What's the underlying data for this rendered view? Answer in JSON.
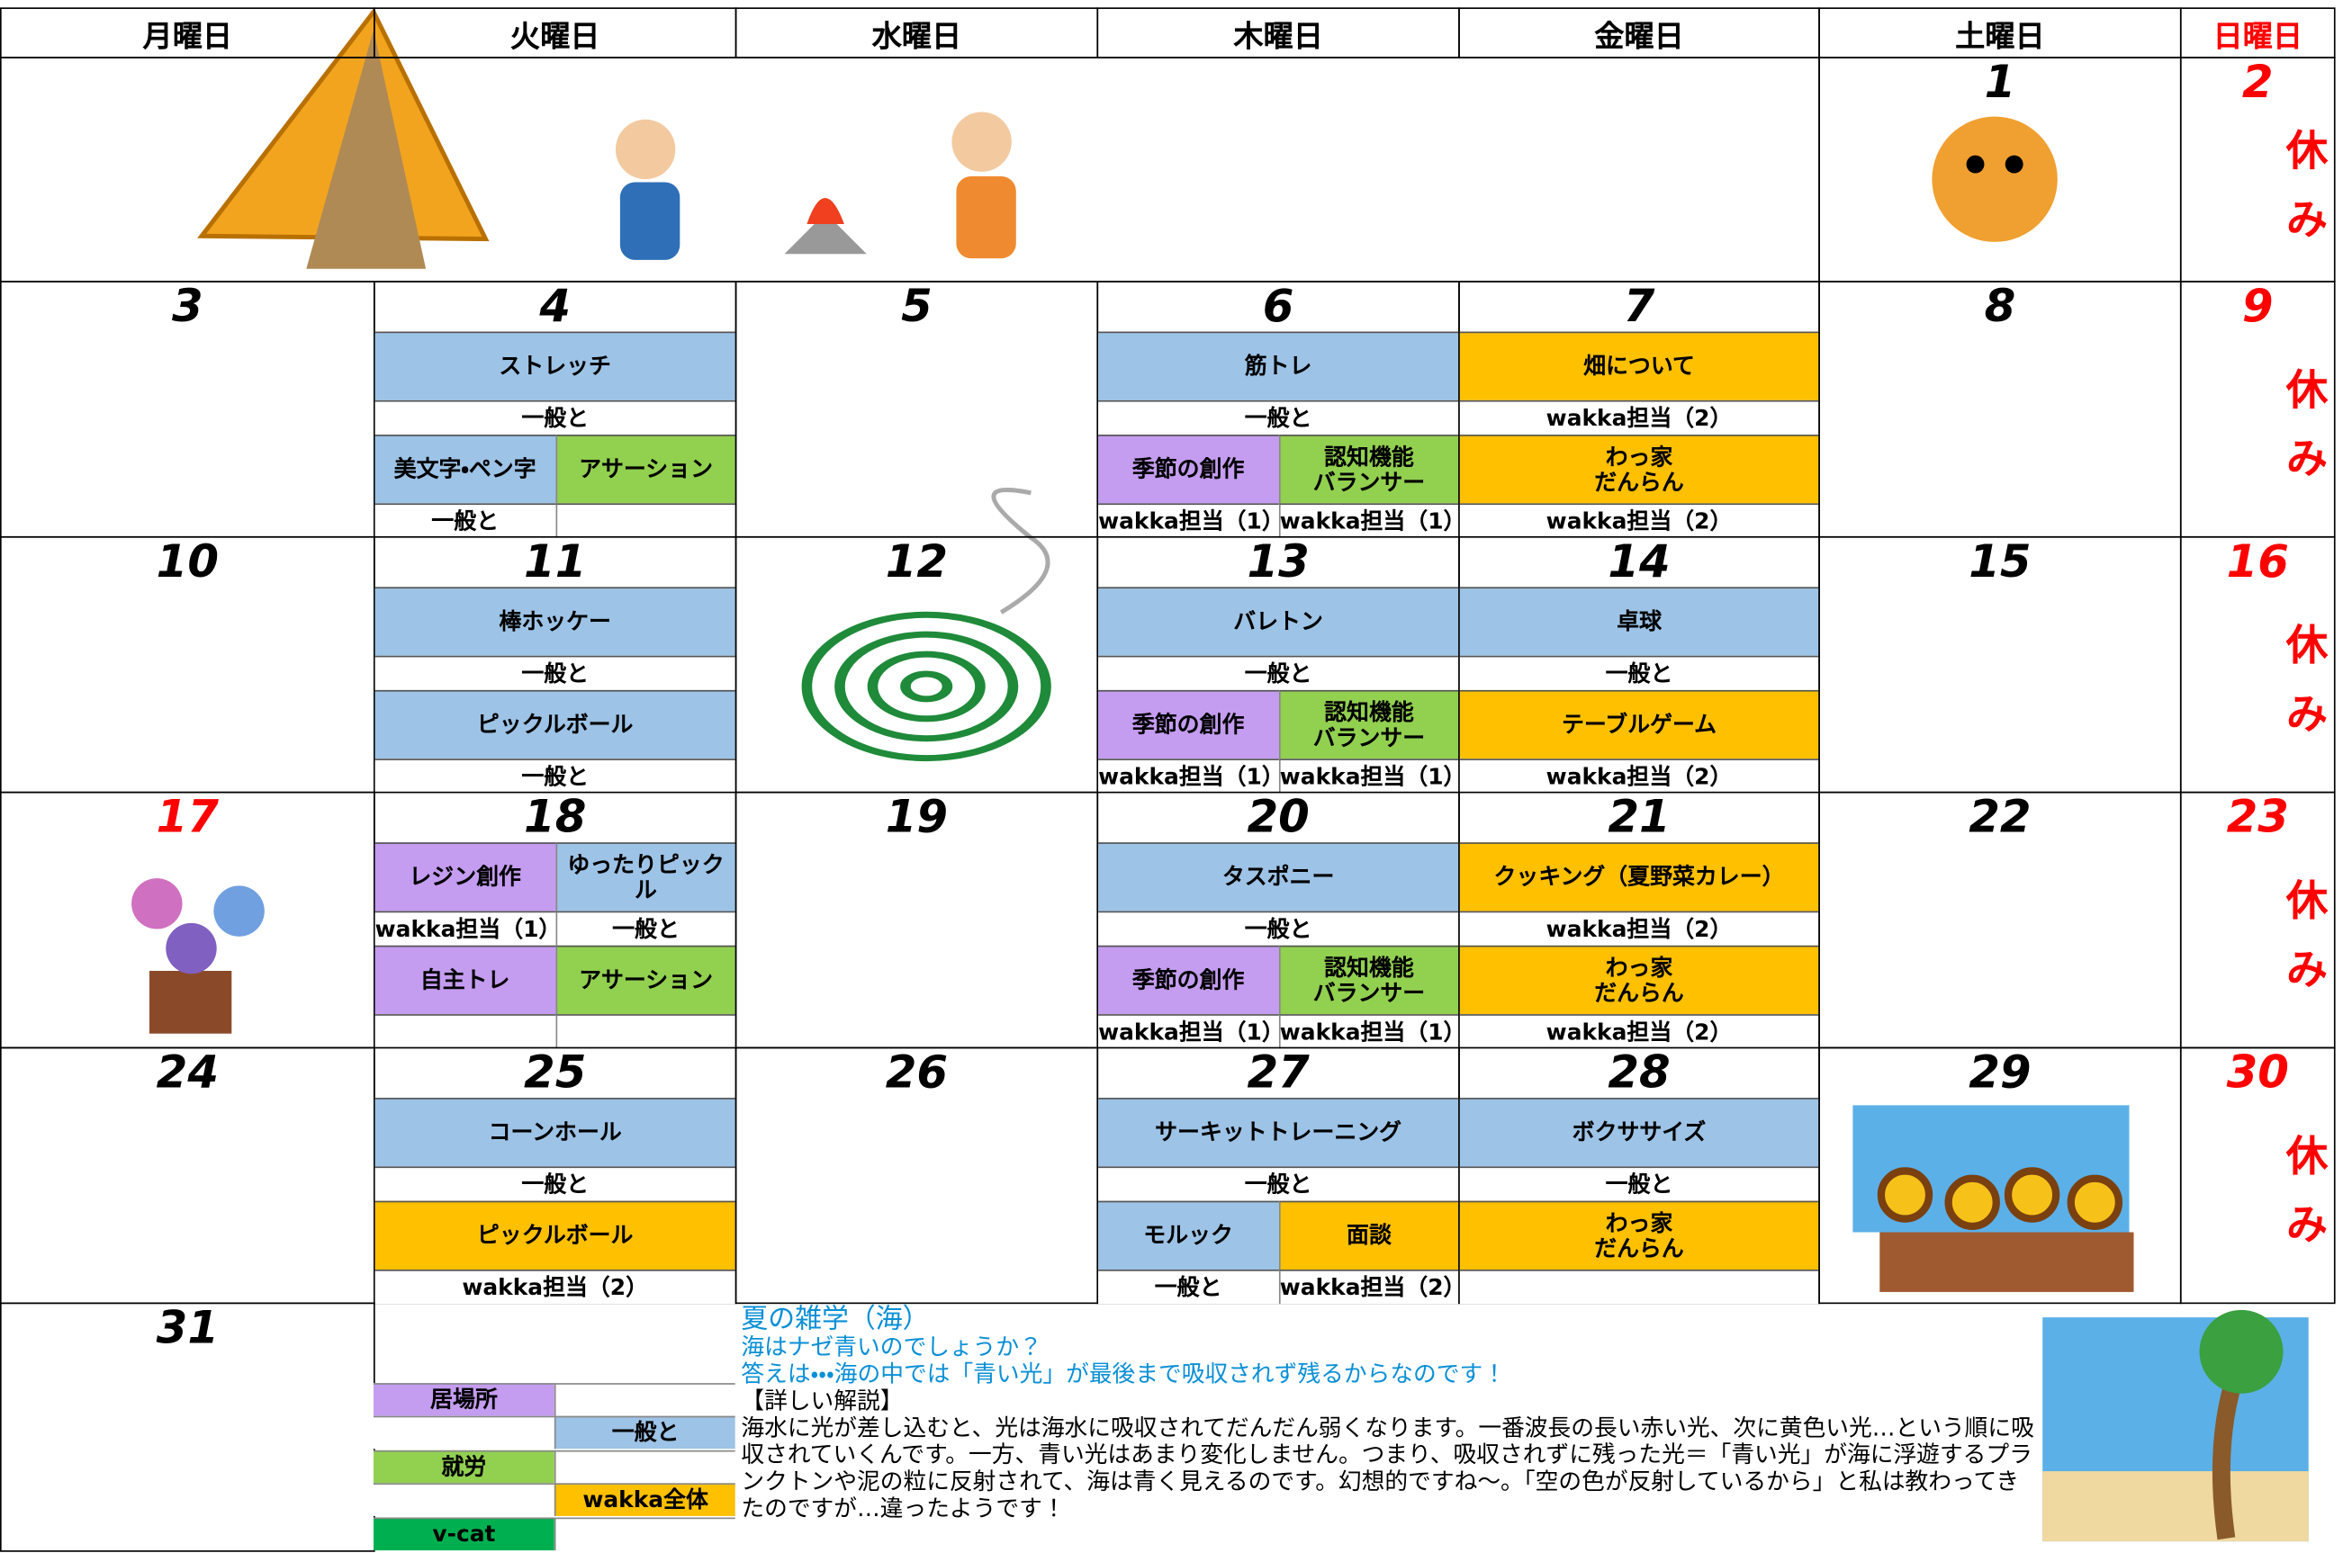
{
  "header": {
    "days": [
      "月曜日",
      "火曜日",
      "水曜日",
      "木曜日",
      "金曜日",
      "土曜日",
      "日曜日"
    ],
    "day_colors": [
      "#000000",
      "#000000",
      "#000000",
      "#000000",
      "#000000",
      "#000000",
      "#ff0000"
    ]
  },
  "weeks": [
    {
      "cells": [
        {
          "date": "1"
        },
        {
          "date": "2",
          "color": "#ff0000",
          "note": "休み"
        }
      ]
    },
    {
      "cells": [
        {
          "date": "3"
        },
        {
          "date": "4",
          "rows": [
            [
              {
                "text": "ストレッチ",
                "color": "#9dc3e6"
              }
            ],
            [
              {
                "text": "一般と"
              }
            ],
            [
              {
                "text": "美文字・ペン字",
                "color": "#9dc3e6"
              },
              {
                "text": "アサーション",
                "color": "#92d050"
              }
            ],
            [
              {
                "text": "一般と"
              },
              {}
            ]
          ]
        },
        {
          "date": "5"
        },
        {
          "date": "6",
          "rows": [
            [
              {
                "text": "筋トレ",
                "color": "#9dc3e6"
              }
            ],
            [
              {
                "text": "一般と"
              }
            ],
            [
              {
                "text": "季節の創作",
                "color": "#c49cf0"
              },
              {
                "text": "認知機能\nバランサー",
                "color": "#92d050"
              }
            ],
            [
              {
                "text": "wakka担当（1）"
              },
              {
                "text": "wakka担当（1）"
              }
            ]
          ]
        },
        {
          "date": "7",
          "rows": [
            [
              {
                "text": "畑について",
                "color": "#ffc000"
              }
            ],
            [
              {
                "text": "wakka担当（2）"
              }
            ],
            [
              {
                "text": "わっ家\nだんらん",
                "color": "#ffc000"
              }
            ],
            [
              {
                "text": "wakka担当（2）"
              }
            ]
          ]
        },
        {
          "date": "8"
        },
        {
          "date": "9",
          "color": "#ff0000",
          "note": "休み"
        }
      ]
    },
    {
      "cells": [
        {
          "date": "10"
        },
        {
          "date": "11",
          "rows": [
            [
              {
                "text": "棒ホッケー",
                "color": "#9dc3e6"
              }
            ],
            [
              {
                "text": "一般と"
              }
            ],
            [
              {
                "text": "ピックルボール",
                "color": "#9dc3e6"
              }
            ],
            [
              {
                "text": "一般と"
              }
            ]
          ]
        },
        {
          "date": "12"
        },
        {
          "date": "13",
          "rows": [
            [
              {
                "text": "バレトン",
                "color": "#9dc3e6"
              }
            ],
            [
              {
                "text": "一般と"
              }
            ],
            [
              {
                "text": "季節の創作",
                "color": "#c49cf0"
              },
              {
                "text": "認知機能\nバランサー",
                "color": "#92d050"
              }
            ],
            [
              {
                "text": "wakka担当（1）"
              },
              {
                "text": "wakka担当（1）"
              }
            ]
          ]
        },
        {
          "date": "14",
          "rows": [
            [
              {
                "text": "卓球",
                "color": "#9dc3e6"
              }
            ],
            [
              {
                "text": "一般と"
              }
            ],
            [
              {
                "text": "テーブルゲーム",
                "color": "#ffc000"
              }
            ],
            [
              {
                "text": "wakka担当（2）"
              }
            ]
          ]
        },
        {
          "date": "15"
        },
        {
          "date": "16",
          "color": "#ff0000",
          "note": "休み"
        }
      ]
    },
    {
      "cells": [
        {
          "date": "17",
          "color": "#ff0000"
        },
        {
          "date": "18",
          "rows": [
            [
              {
                "text": "レジン創作",
                "color": "#c49cf0"
              },
              {
                "text": "ゆったりピックル",
                "color": "#9dc3e6"
              }
            ],
            [
              {
                "text": "wakka担当（1）"
              },
              {
                "text": "一般と"
              }
            ],
            [
              {
                "text": "自主トレ",
                "color": "#c49cf0"
              },
              {
                "text": "アサーション",
                "color": "#92d050"
              }
            ],
            [
              {},
              {}
            ]
          ]
        },
        {
          "date": "19"
        },
        {
          "date": "20",
          "rows": [
            [
              {
                "text": "タスポニー",
                "color": "#9dc3e6"
              }
            ],
            [
              {
                "text": "一般と"
              }
            ],
            [
              {
                "text": "季節の創作",
                "color": "#c49cf0"
              },
              {
                "text": "認知機能\nバランサー",
                "color": "#92d050"
              }
            ],
            [
              {
                "text": "wakka担当（1）"
              },
              {
                "text": "wakka担当（1）"
              }
            ]
          ]
        },
        {
          "date": "21",
          "rows": [
            [
              {
                "text": "クッキング（夏野菜カレー）",
                "color": "#ffc000"
              }
            ],
            [
              {
                "text": "wakka担当（2）"
              }
            ],
            [
              {
                "text": "わっ家\nだんらん",
                "color": "#ffc000"
              }
            ],
            [
              {
                "text": "wakka担当（2）"
              }
            ]
          ]
        },
        {
          "date": "22"
        },
        {
          "date": "23",
          "color": "#ff0000",
          "note": "休み"
        }
      ]
    },
    {
      "cells": [
        {
          "date": "24"
        },
        {
          "date": "25",
          "rows": [
            [
              {
                "text": "コーンホール",
                "color": "#9dc3e6"
              }
            ],
            [
              {
                "text": "一般と"
              }
            ],
            [
              {
                "text": "ピックルボール",
                "color": "#ffc000"
              }
            ],
            [
              {
                "text": "wakka担当（2）"
              }
            ]
          ]
        },
        {
          "date": "26"
        },
        {
          "date": "27",
          "rows": [
            [
              {
                "text": "サーキットトレーニング",
                "color": "#9dc3e6"
              }
            ],
            [
              {
                "text": "一般と"
              }
            ],
            [
              {
                "text": "モルック",
                "color": "#9dc3e6"
              },
              {
                "text": "面談",
                "color": "#ffc000"
              }
            ],
            [
              {
                "text": "一般と"
              },
              {
                "text": "wakka担当（2）"
              }
            ]
          ]
        },
        {
          "date": "28",
          "rows": [
            [
              {
                "text": "ボクササイズ",
                "color": "#9dc3e6"
              }
            ],
            [
              {
                "text": "一般と"
              }
            ],
            [
              {
                "text": "わっ家\nだんらん",
                "color": "#ffc000"
              }
            ],
            [
              {}
            ]
          ]
        },
        {
          "date": "29"
        },
        {
          "date": "30",
          "color": "#ff0000",
          "note": "休み"
        }
      ]
    },
    {
      "cells": [
        {
          "date": "31"
        }
      ]
    }
  ],
  "legend": [
    [
      {
        "text": "居場所",
        "color": "#c49cf0"
      },
      {}
    ],
    [
      {},
      {
        "text": "一般と",
        "color": "#9dc3e6"
      }
    ],
    [
      {
        "text": "就労",
        "color": "#92d050"
      },
      {}
    ],
    [
      {},
      {
        "text": "wakka全体",
        "color": "#ffc000"
      }
    ],
    [
      {
        "text": "v-cat",
        "color": "#00b050"
      },
      {}
    ]
  ],
  "trivia": {
    "title": "夏の雑学（海）",
    "question": "海はナゼ青いのでしょうか？",
    "answer": "答えは・・・海の中では「青い光」が最後まで吸収されず残るからなのです！",
    "heading": "【詳しい解説】",
    "body": "海水に光が差し込むと、光は海水に吸収されてだんだん弱くなります。一番波長の長い赤い光、次に黄色い光…という順に吸収されていくんです。一方、青い光はあまり変化しません。つまり、吸収されずに残った光＝「青い光」が海に浮遊するプランクトンや泥の粒に反射されて、海は青く見えるのです。幻想的ですね～。「空の色が反射しているから」と私は教わってきたのですが…違ったようです！"
  }
}
